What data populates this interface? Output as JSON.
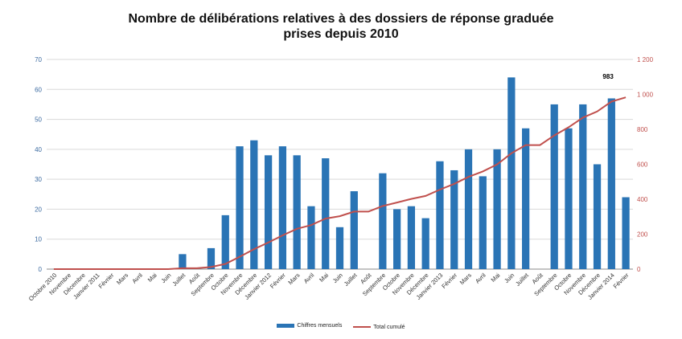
{
  "chart_data": {
    "type": "bar",
    "title_line1": "Nombre de délibérations relatives à des dossiers de réponse graduée",
    "title_line2": "prises depuis 2010",
    "categories": [
      "Octobre 2010",
      "Novembre",
      "Décembre",
      "Janvier 2011",
      "Février",
      "Mars",
      "Avril",
      "Mai",
      "Juin",
      "Juillet",
      "Août",
      "Septembre",
      "Octobre",
      "Novembre",
      "Décembre",
      "Janvier 2012",
      "Février",
      "Mars",
      "Avril",
      "Mai",
      "Juin",
      "Juillet",
      "Août",
      "Septembre",
      "Octobre",
      "Novembre",
      "Décembre",
      "Janvier 2013",
      "Février",
      "Mars",
      "Avril",
      "Mai",
      "Juin",
      "Juillet",
      "Août",
      "Septembre",
      "Octobre",
      "Novembre",
      "Décembre",
      "Janvier 2014",
      "Février"
    ],
    "series": [
      {
        "name": "Chiffres mensuels",
        "type": "bar",
        "axis": "left",
        "color": "#2a74b5",
        "values": [
          0,
          0,
          0,
          0,
          0,
          0,
          0,
          0,
          0,
          5,
          0,
          7,
          18,
          41,
          43,
          38,
          41,
          38,
          21,
          37,
          14,
          26,
          0,
          32,
          20,
          21,
          17,
          36,
          33,
          40,
          31,
          40,
          64,
          47,
          0,
          55,
          47,
          55,
          35,
          57,
          24
        ]
      },
      {
        "name": "Total cumulé",
        "type": "line",
        "axis": "right",
        "color": "#c0504d",
        "values": [
          0,
          0,
          0,
          0,
          0,
          0,
          0,
          0,
          0,
          5,
          5,
          12,
          30,
          71,
          114,
          152,
          193,
          231,
          252,
          289,
          303,
          329,
          329,
          361,
          381,
          402,
          419,
          455,
          488,
          528,
          559,
          599,
          663,
          710,
          710,
          765,
          812,
          867,
          902,
          959,
          983
        ]
      }
    ],
    "left_axis": {
      "ylim": [
        0,
        70
      ],
      "ticks": [
        "0",
        "10",
        "20",
        "30",
        "40",
        "50",
        "60",
        "70"
      ]
    },
    "right_axis": {
      "ylim": [
        0,
        1200
      ],
      "ticks": [
        "0",
        "200",
        "400",
        "600",
        "800",
        "1 000",
        "1 200"
      ]
    },
    "annotation": {
      "text": "983"
    },
    "grid": true,
    "legend_position": "bottom"
  }
}
